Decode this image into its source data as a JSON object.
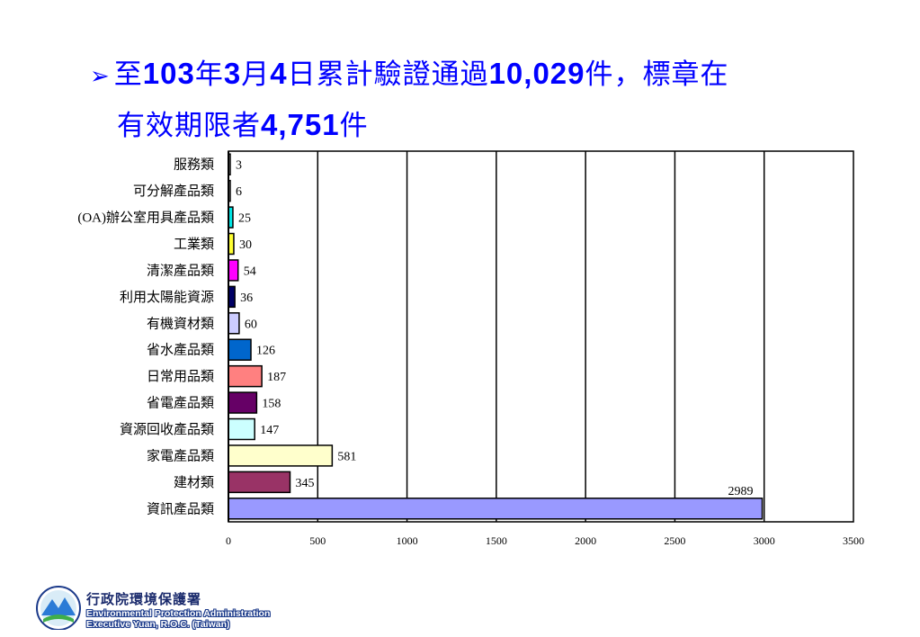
{
  "headline": {
    "p1": "至",
    "n1": "103",
    "p2": "年",
    "n2": "3",
    "p3": "月",
    "n3": "4",
    "p4": "日累計驗證通過",
    "n4": "10,029",
    "p5": "件，標章在",
    "p6": "有效期限者",
    "n5": "4,751",
    "p7": "件"
  },
  "logo": {
    "zh": "行政院環境保護署",
    "en1": "Environmental Protection Administration",
    "en2": "Executive Yuan, R.O.C. (Taiwan)"
  },
  "chart_data": {
    "type": "bar",
    "orientation": "horizontal",
    "categories": [
      "服務類",
      "可分解產品類",
      "(OA)辦公室用具產品類",
      "工業類",
      "清潔產品類",
      "利用太陽能資源",
      "有機資材類",
      "省水產品類",
      "日常用品類",
      "省電產品類",
      "資源回收產品類",
      "家電產品類",
      "建材類",
      "資訊產品類"
    ],
    "values": [
      3,
      6,
      25,
      30,
      54,
      36,
      60,
      126,
      187,
      158,
      147,
      581,
      345,
      2989
    ],
    "value_labels": [
      "3",
      "6",
      "25",
      "30",
      "54",
      "36",
      "60",
      "126",
      "187",
      "158",
      "147",
      "581",
      "345",
      "2989"
    ],
    "colors": [
      "#ffffff",
      "#ffffff",
      "#00e5e5",
      "#ffff33",
      "#ff00ff",
      "#000066",
      "#ccccff",
      "#0066cc",
      "#ff8080",
      "#660066",
      "#ccffff",
      "#ffffcc",
      "#993366",
      "#9999ff"
    ],
    "xlim": [
      0,
      3500
    ],
    "xticks": [
      "0",
      "500",
      "1000",
      "1500",
      "2000",
      "2500",
      "3000",
      "3500"
    ],
    "xlabel": "",
    "ylabel": "",
    "title": "",
    "grid": "vertical"
  }
}
